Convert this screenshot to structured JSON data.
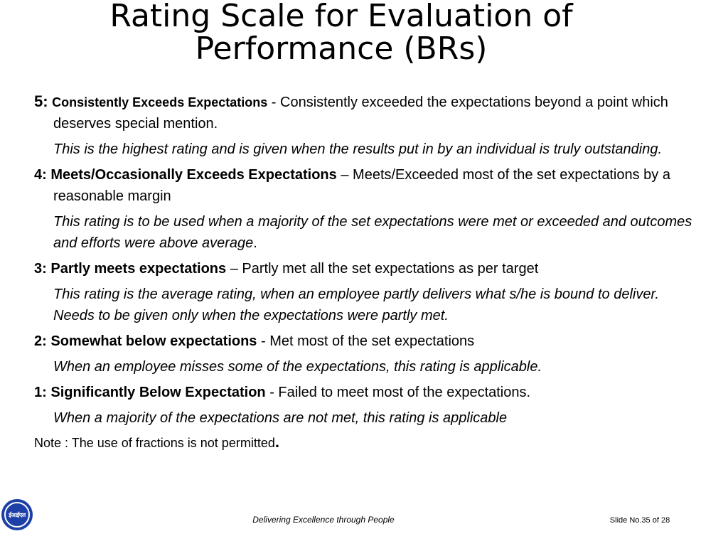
{
  "title": "Rating Scale for Evaluation of Performance (BRs)",
  "ratings": [
    {
      "num": "5:",
      "label": "Consistently Exceeds Expectations",
      "sep": " - ",
      "text": "Consistently exceeded the expectations beyond a point which deserves special mention.",
      "desc": "This is the highest rating and is given when the results put in by an individual is truly outstanding."
    },
    {
      "num": "4:",
      "label": "Meets/Occasionally Exceeds Expectations",
      "sep": " – ",
      "text": "Meets/Exceeded most of the set expectations by a reasonable margin",
      "desc": "This rating is to be used when a majority of the set expectations were met or exceeded and outcomes and efforts were above average",
      "desc_suffix": "."
    },
    {
      "num": "3:",
      "label": "Partly meets expectations",
      "sep": " – ",
      "text": "Partly met all the set  expectations as per target",
      "desc": "This rating is the average rating, when an employee partly delivers what s/he is bound to deliver. Needs to be given only when the expectations were partly met."
    },
    {
      "num": "2:",
      "label": "Somewhat below expectations",
      "sep": " - ",
      "text": "Met most of the set expectations",
      "desc": "When an employee misses some of the expectations, this rating is applicable."
    },
    {
      "num": "1:",
      "label": "Significantly Below Expectation",
      "sep": " - ",
      "text": "Failed to meet most of the expectations.",
      "desc": "When a majority of the expectations are not met, this rating is applicable"
    }
  ],
  "note": "Note : The use of fractions is not permitted",
  "note_dot": ".",
  "footer": {
    "tagline": "Delivering Excellence through People",
    "slide": "Slide No.35 of 28",
    "logo_text": "ईआईएल"
  },
  "colors": {
    "logo": "#1d3fa8"
  }
}
